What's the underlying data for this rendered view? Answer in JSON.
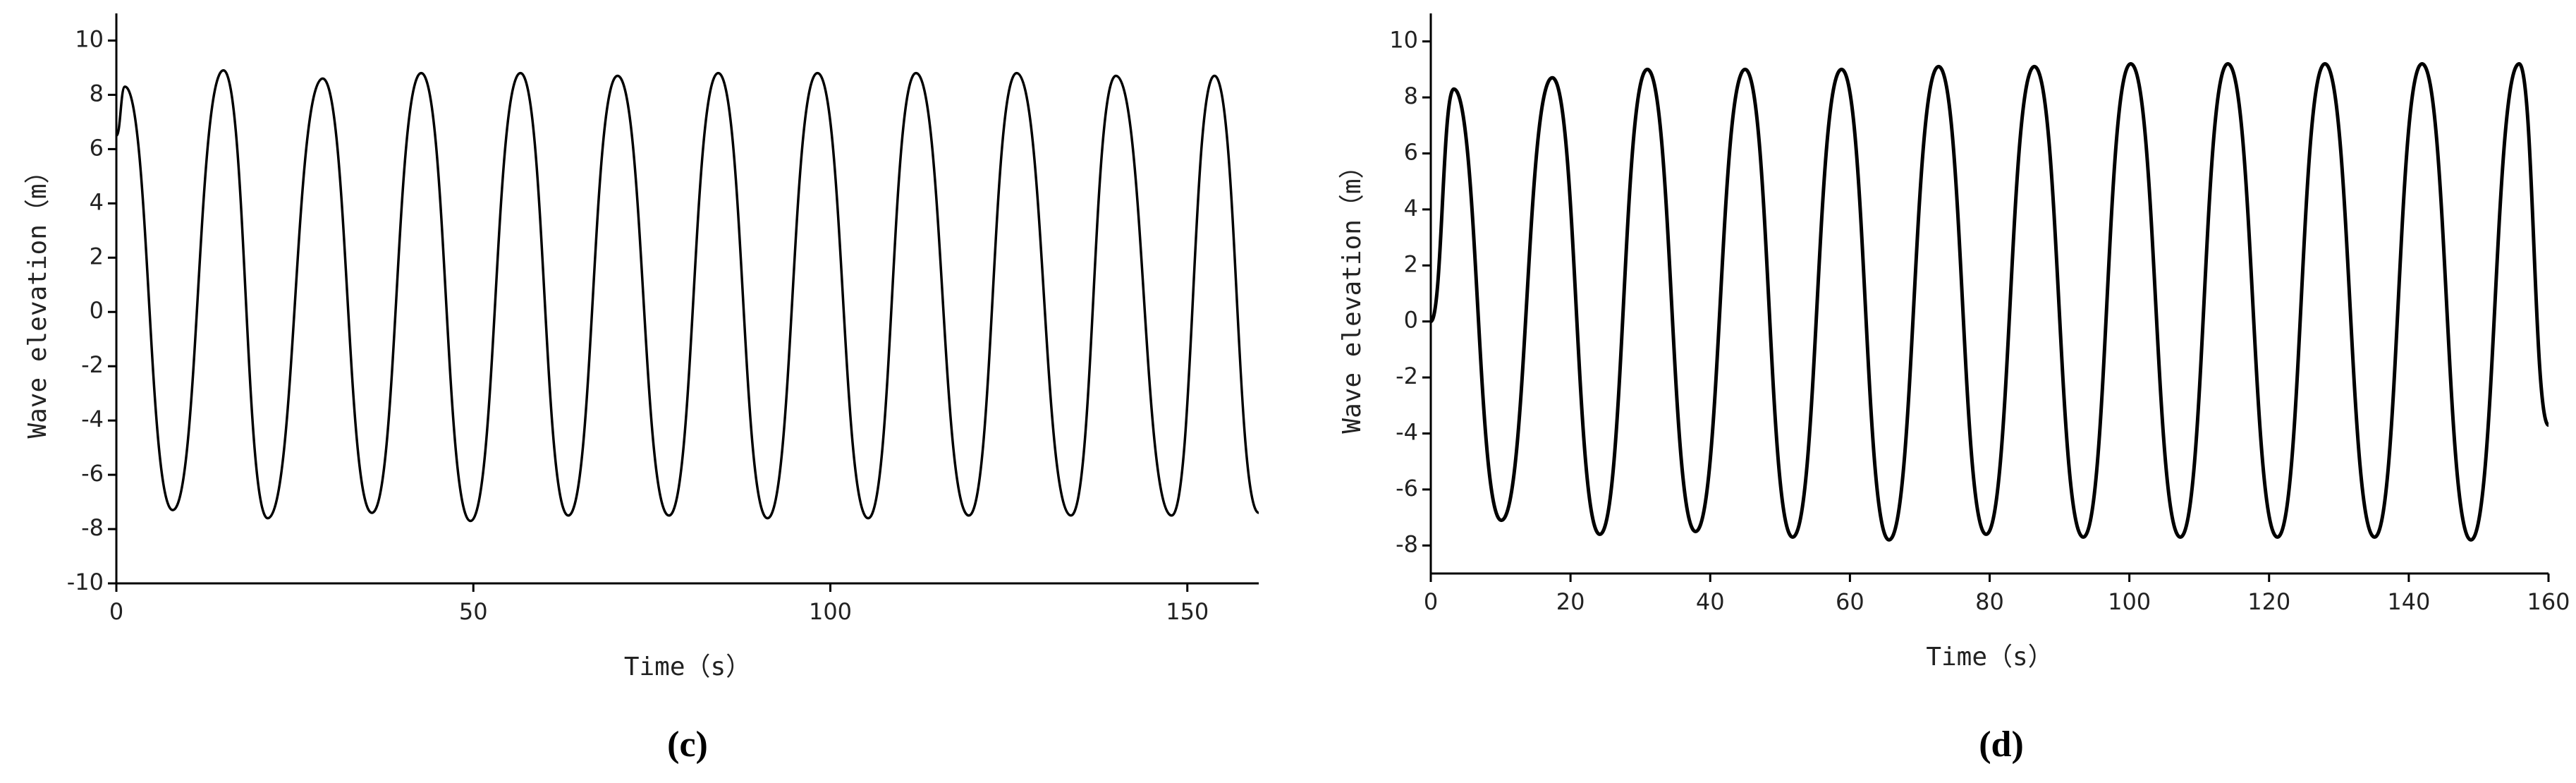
{
  "chart_data": [
    {
      "type": "line",
      "label": "(c)",
      "xlabel": "Time（s）",
      "ylabel": "Wave elevation（m）",
      "x": [
        0,
        1.2,
        7.9,
        15,
        21.2,
        28.9,
        35.8,
        42.7,
        49.6,
        56.6,
        63.3,
        70.2,
        77.4,
        84.3,
        91.2,
        98.2,
        105.3,
        112,
        119.4,
        126.1,
        133.7,
        140,
        147.8,
        153.8,
        160
      ],
      "values": [
        6.5,
        8.3,
        -7.3,
        8.9,
        -7.6,
        8.6,
        -7.4,
        8.8,
        -7.7,
        8.8,
        -7.5,
        8.7,
        -7.5,
        8.8,
        -7.6,
        8.8,
        -7.6,
        8.8,
        -7.5,
        8.8,
        -7.5,
        8.7,
        -7.5,
        8.7,
        -7.4
      ],
      "color": "#000000",
      "xlim": [
        0,
        160
      ],
      "xticks": [
        0,
        50,
        100,
        150
      ],
      "ylim": [
        -10,
        11
      ],
      "yticks": [
        -10,
        -8,
        -6,
        -4,
        -2,
        0,
        2,
        4,
        6,
        8,
        10
      ]
    },
    {
      "type": "line",
      "label": "(d)",
      "xlabel": "Time（s）",
      "ylabel": "Wave elevation（m）",
      "x": [
        0,
        3.3,
        10.1,
        17.4,
        24.2,
        31,
        37.9,
        45,
        51.8,
        58.8,
        65.6,
        72.7,
        79.5,
        86.4,
        93.4,
        100.2,
        107.3,
        114.1,
        121.2,
        128,
        135.1,
        141.9,
        148.9,
        155.8,
        160
      ],
      "values": [
        0,
        8.3,
        -7.1,
        8.7,
        -7.6,
        9.0,
        -7.5,
        9.0,
        -7.7,
        9.0,
        -7.8,
        9.1,
        -7.6,
        9.1,
        -7.7,
        9.2,
        -7.7,
        9.2,
        -7.7,
        9.2,
        -7.7,
        9.2,
        -7.8,
        9.2,
        -3.7
      ],
      "color": "#000000",
      "xlim": [
        0,
        160
      ],
      "xticks": [
        0,
        20,
        40,
        60,
        80,
        100,
        120,
        140,
        160
      ],
      "ylim": [
        -9,
        11
      ],
      "yticks": [
        -8,
        -6,
        -4,
        -2,
        0,
        2,
        4,
        6,
        8,
        10
      ]
    }
  ]
}
